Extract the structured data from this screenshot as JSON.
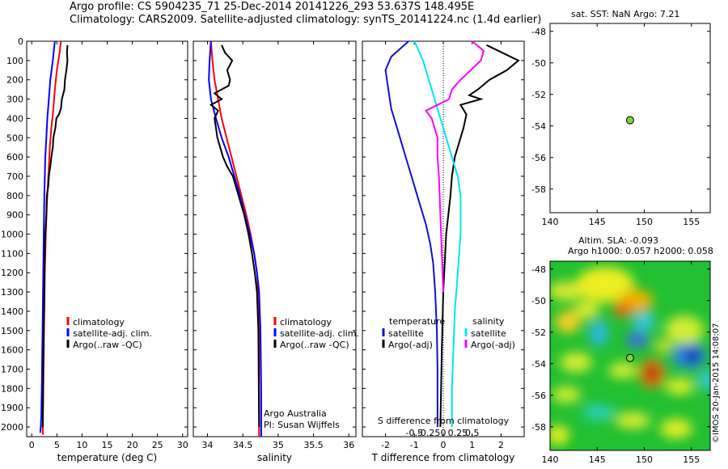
{
  "header": {
    "line1": "Argo profile: CS 5904235_71 25-Dec-2014 20141226_293 53.637S 148.495E",
    "line2": "Climatology: CARS2009. Satellite-adjusted climatology: synTS_20141224.nc (1.4d earlier)"
  },
  "colors": {
    "climatology": "#ff0000",
    "satellite": "#0000ff",
    "argo": "#000000",
    "temp_diff_sat": "#1010d0",
    "sal_diff_sat": "#00e5ee",
    "sal_diff_argo": "#ff00ff",
    "argo_point": "#7fd43a"
  },
  "chart_data": [
    {
      "type": "line",
      "id": "temperature",
      "xlabel": "temperature (deg C)",
      "xlim": [
        -1,
        31
      ],
      "ylim": [
        2050,
        0
      ],
      "xticks": [
        0,
        5,
        10,
        15,
        20,
        25,
        30
      ],
      "yticks": [
        0,
        100,
        200,
        300,
        400,
        500,
        600,
        700,
        800,
        900,
        1000,
        1100,
        1200,
        1300,
        1400,
        1500,
        1600,
        1700,
        1800,
        1900,
        2000
      ],
      "legend": [
        "climatology",
        "satellite-adj. clim.",
        "Argo(..raw -QC)"
      ],
      "series": [
        {
          "name": "climatology",
          "color": "#ff0000",
          "x": [
            5.8,
            5.6,
            5.0,
            4.6,
            4.3,
            3.9,
            3.6,
            3.4,
            3.2,
            3.0,
            2.8,
            2.7,
            2.6,
            2.5,
            2.4,
            2.3,
            2.2,
            2.2
          ],
          "y": [
            0,
            50,
            150,
            250,
            350,
            450,
            550,
            650,
            750,
            850,
            1000,
            1100,
            1200,
            1400,
            1600,
            1800,
            2000,
            2040
          ]
        },
        {
          "name": "satellite-adj. clim.",
          "color": "#0000ff",
          "x": [
            4.6,
            4.2,
            3.7,
            3.4,
            3.1,
            2.9,
            2.7,
            2.6,
            2.5,
            2.4,
            2.3,
            2.2,
            2.1,
            2.0,
            1.9,
            1.8,
            1.7
          ],
          "y": [
            0,
            100,
            200,
            300,
            400,
            500,
            600,
            700,
            800,
            1000,
            1200,
            1400,
            1600,
            1800,
            1950,
            2000,
            2030
          ]
        },
        {
          "name": "Argo(..raw -QC)",
          "color": "#000000",
          "x": [
            7.1,
            7.0,
            7.1,
            6.9,
            6.6,
            6.5,
            6.0,
            5.8,
            5.4,
            4.9,
            4.7,
            4.3,
            4.2,
            3.9,
            3.7,
            3.4,
            3.3,
            3.0,
            2.9,
            2.7,
            2.6,
            2.5,
            2.4,
            2.3,
            2.2
          ],
          "y": [
            20,
            60,
            100,
            150,
            200,
            250,
            300,
            350,
            380,
            400,
            450,
            500,
            550,
            600,
            650,
            700,
            750,
            800,
            900,
            1000,
            1100,
            1300,
            1500,
            1700,
            2000
          ]
        }
      ]
    },
    {
      "type": "line",
      "id": "salinity",
      "xlabel": "salinity",
      "xlim": [
        33.8,
        36.1
      ],
      "ylim": [
        2050,
        0
      ],
      "xticks": [
        34,
        34.5,
        35,
        35.5,
        36
      ],
      "legend": [
        "climatology",
        "satellite-adj. clim.",
        "Argo(..raw -QC)"
      ],
      "annotation": [
        "Argo Australia",
        "PI: Susan Wijffels"
      ],
      "series": [
        {
          "name": "climatology",
          "color": "#ff0000",
          "x": [
            34.05,
            34.07,
            34.1,
            34.15,
            34.2,
            34.27,
            34.34,
            34.41,
            34.48,
            34.55,
            34.61,
            34.66,
            34.7,
            34.72,
            34.73,
            34.73
          ],
          "y": [
            0,
            100,
            200,
            300,
            400,
            500,
            600,
            700,
            800,
            900,
            1000,
            1100,
            1200,
            1300,
            1500,
            2050
          ]
        },
        {
          "name": "satellite-adj. clim.",
          "color": "#0000ff",
          "x": [
            34.05,
            34.03,
            34.02,
            34.05,
            34.12,
            34.2,
            34.3,
            34.38,
            34.46,
            34.53,
            34.6,
            34.66,
            34.7,
            34.73,
            34.75,
            34.76,
            34.76
          ],
          "y": [
            0,
            100,
            200,
            300,
            400,
            500,
            600,
            700,
            800,
            900,
            1000,
            1100,
            1200,
            1300,
            1500,
            1800,
            2050
          ]
        },
        {
          "name": "Argo(..raw -QC)",
          "color": "#000000",
          "x": [
            34.2,
            34.25,
            34.35,
            34.28,
            34.32,
            34.3,
            34.1,
            34.2,
            34.05,
            34.15,
            34.1,
            34.12,
            34.14,
            34.18,
            34.22,
            34.28,
            34.36,
            34.44,
            34.52,
            34.58,
            34.63,
            34.67,
            34.7,
            34.72,
            34.73
          ],
          "y": [
            20,
            60,
            100,
            150,
            200,
            230,
            270,
            300,
            330,
            360,
            400,
            450,
            500,
            550,
            600,
            650,
            700,
            800,
            900,
            1000,
            1100,
            1200,
            1300,
            1500,
            2000
          ]
        }
      ]
    },
    {
      "type": "line",
      "id": "differences",
      "xlabel": "T difference from climatology",
      "xlabel_top": "S difference from climatology",
      "xlim": [
        -2.8,
        2.8
      ],
      "ylim": [
        2050,
        0
      ],
      "xticks": [
        -2,
        -1,
        0,
        1,
        2
      ],
      "xticks_s": [
        -0.5,
        -0.25,
        0,
        0.25,
        0.5
      ],
      "legend_headers": [
        "temperature",
        "salinity"
      ],
      "legend": [
        "satellite",
        "Argo(-adj)",
        "satellite",
        "Argo(-adj)"
      ],
      "series": [
        {
          "name": "temperature satellite",
          "color": "#1010d0",
          "x": [
            -1.2,
            -1.8,
            -2.0,
            -1.9,
            -1.8,
            -1.6,
            -1.4,
            -1.2,
            -1.0,
            -0.8,
            -0.6,
            -0.45,
            -0.35,
            -0.28,
            -0.22,
            -0.2,
            -0.2,
            -0.2
          ],
          "y": [
            0,
            80,
            150,
            250,
            350,
            450,
            550,
            650,
            750,
            850,
            950,
            1050,
            1150,
            1300,
            1500,
            1700,
            1900,
            2000
          ]
        },
        {
          "name": "temperature Argo(-adj)",
          "color": "#000000",
          "x": [
            1.5,
            2.6,
            2.2,
            1.6,
            1.2,
            0.9,
            1.3,
            0.6,
            0.8,
            0.7,
            0.6,
            0.4,
            0.3,
            0.25,
            0.1,
            0.0,
            -0.05,
            -0.1
          ],
          "y": [
            20,
            100,
            150,
            200,
            250,
            280,
            300,
            330,
            380,
            450,
            500,
            600,
            700,
            800,
            1000,
            1300,
            1600,
            2000
          ]
        },
        {
          "name": "salinity satellite",
          "color": "#00e5ee",
          "x": [
            -1.0,
            -0.7,
            -0.5,
            -0.3,
            -0.1,
            0.1,
            0.3,
            0.5,
            0.6,
            0.6,
            0.5,
            0.4,
            0.35,
            0.3,
            0.3
          ],
          "y": [
            0,
            100,
            200,
            300,
            400,
            500,
            600,
            700,
            800,
            1000,
            1200,
            1400,
            1600,
            1800,
            2000
          ]
        },
        {
          "name": "salinity Argo(-adj)",
          "color": "#ff00ff",
          "x": [
            1.0,
            1.4,
            1.3,
            0.6,
            0.3,
            0.2,
            -0.2,
            -0.6,
            -0.4,
            -0.2,
            -0.2,
            -0.15,
            -0.1,
            -0.05,
            0.0
          ],
          "y": [
            0,
            50,
            100,
            200,
            250,
            300,
            330,
            360,
            400,
            500,
            600,
            700,
            900,
            1100,
            1300
          ]
        }
      ]
    },
    {
      "type": "scatter",
      "id": "sst",
      "xlim": [
        140,
        157
      ],
      "ylim": [
        -59.5,
        -47.5
      ],
      "xticks": [
        140,
        145,
        150,
        155
      ],
      "yticks": [
        -48,
        -50,
        -52,
        -54,
        -56,
        -58
      ],
      "points": [
        {
          "x": 148.495,
          "y": -53.637
        }
      ]
    },
    {
      "type": "heatmap",
      "id": "altimetry",
      "xlim": [
        140,
        157
      ],
      "ylim": [
        -59.5,
        -47.5
      ],
      "xticks": [
        140,
        145,
        150,
        155
      ],
      "yticks": [
        -48,
        -50,
        -52,
        -54,
        -56,
        -58
      ],
      "points": [
        {
          "x": 148.495,
          "y": -53.637
        }
      ]
    }
  ],
  "panels": {
    "sst_title": "sat. SST: NaN Argo: 7.21",
    "altimetry_title1": "Altim. SLA: -0.093",
    "altimetry_title2": "Argo h1000: 0.057 h2000: 0.058",
    "copyright": "©IMOS 20-Jan-2015 14:08:07"
  }
}
